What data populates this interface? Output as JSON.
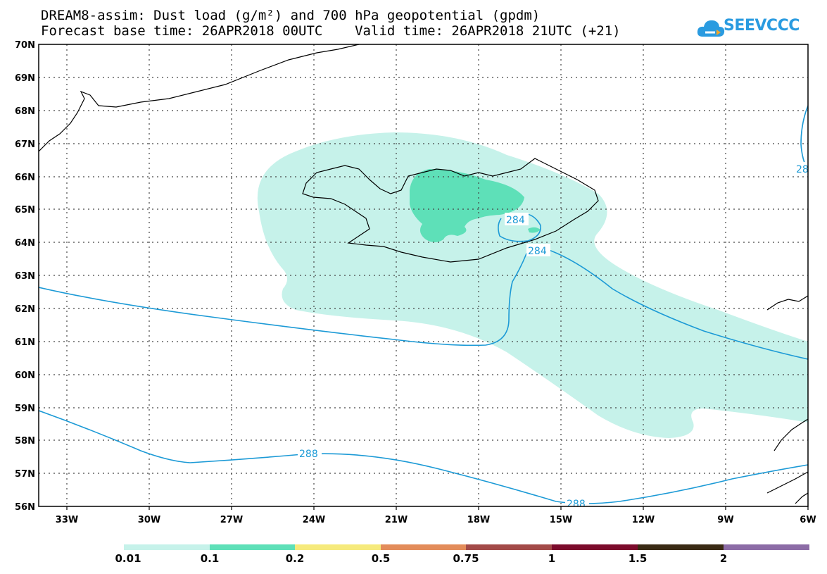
{
  "header": {
    "title_line1": "DREAM8-assim: Dust load (g/m²) and 700 hPa geopotential (gpdm)",
    "title_line2": "Forecast base time: 26APR2018 00UTC    Valid time: 26APR2018 21UTC (+21)"
  },
  "logo": {
    "text": "SEEVCCC",
    "icon": "cloud-logo-icon"
  },
  "map": {
    "lat_labels": [
      "70N",
      "69N",
      "68N",
      "67N",
      "66N",
      "65N",
      "64N",
      "63N",
      "62N",
      "61N",
      "60N",
      "59N",
      "58N",
      "57N",
      "56N"
    ],
    "lon_labels": [
      "33W",
      "30W",
      "27W",
      "24W",
      "21W",
      "18W",
      "15W",
      "12W",
      "9W",
      "6W"
    ],
    "contour_labels": [
      "284",
      "284",
      "288",
      "288",
      "28"
    ],
    "colors": {
      "dust_low": "#c6f2ea",
      "dust_mid": "#5ee0b8",
      "contour": "#1c9ad6",
      "coast": "#000000"
    }
  },
  "legend": {
    "labels": [
      "0.01",
      "0.1",
      "0.2",
      "0.5",
      "0.75",
      "1",
      "1.5",
      "2"
    ],
    "colors": [
      "#c6f2ea",
      "#5ee0b8",
      "#f6ea7c",
      "#e38c5a",
      "#a34a48",
      "#7c0b2c",
      "#3a2a14",
      "#8c6ca6"
    ]
  }
}
